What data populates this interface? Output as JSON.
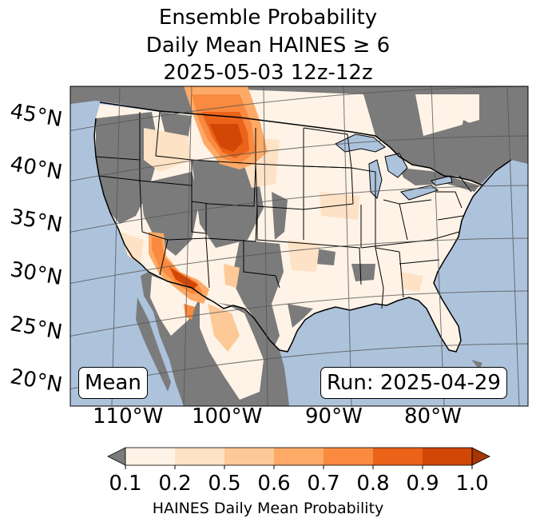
{
  "title": {
    "line1": "Ensemble Probability",
    "line2": "Daily Mean HAINES ≥ 6",
    "line3": "2025-05-03 12z-12z"
  },
  "map": {
    "latitude_labels": [
      "45°N",
      "40°N",
      "35°N",
      "30°N",
      "25°N",
      "20°N"
    ],
    "longitude_labels": [
      "110°W",
      "100°W",
      "90°W",
      "80°W"
    ],
    "stat_label": "Mean",
    "run_label": "Run: 2025-04-29",
    "ocean_color": "#adc3dc",
    "land_mask_color": "#7b7b7b"
  },
  "colorbar": {
    "tick_labels": [
      "0.1",
      "0.2",
      "0.5",
      "0.6",
      "0.7",
      "0.8",
      "0.9",
      "1.0"
    ],
    "label": "HAINES Daily Mean Probability",
    "under_color": "#7b7b7b",
    "bin_colors": [
      "#fff3e7",
      "#fee2c5",
      "#fdc996",
      "#fdaa67",
      "#f98a3f",
      "#ea6319",
      "#d24705"
    ],
    "over_color": "#a63603"
  }
}
